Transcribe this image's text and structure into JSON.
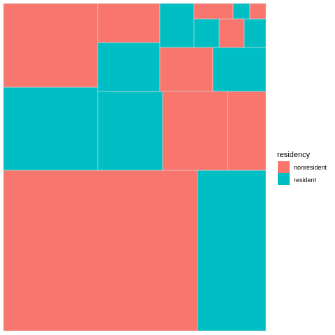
{
  "chart_data": {
    "type": "treemap",
    "legend": {
      "title": "residency",
      "position": "right",
      "items": [
        {
          "label": "nonresident",
          "color": "#F8766D"
        },
        {
          "label": "resident",
          "color": "#00BFC4"
        }
      ]
    },
    "tiles": [
      {
        "residency": "nonresident",
        "color": "#F8766D"
      },
      {
        "residency": "resident",
        "color": "#00BFC4"
      },
      {
        "residency": "resident",
        "color": "#00BFC4"
      },
      {
        "residency": "resident",
        "color": "#00BFC4"
      },
      {
        "residency": "nonresident",
        "color": "#F8766D"
      },
      {
        "residency": "nonresident",
        "color": "#F8766D"
      },
      {
        "residency": "nonresident",
        "color": "#F8766D"
      },
      {
        "residency": "resident",
        "color": "#00BFC4"
      },
      {
        "residency": "nonresident",
        "color": "#F8766D"
      },
      {
        "residency": "resident",
        "color": "#00BFC4"
      },
      {
        "residency": "nonresident",
        "color": "#F8766D"
      },
      {
        "residency": "resident",
        "color": "#00BFC4"
      },
      {
        "residency": "resident",
        "color": "#00BFC4"
      },
      {
        "residency": "nonresident",
        "color": "#F8766D"
      },
      {
        "residency": "resident",
        "color": "#00BFC4"
      },
      {
        "residency": "nonresident",
        "color": "#F8766D"
      },
      {
        "residency": "resident",
        "color": "#00BFC4"
      }
    ]
  }
}
